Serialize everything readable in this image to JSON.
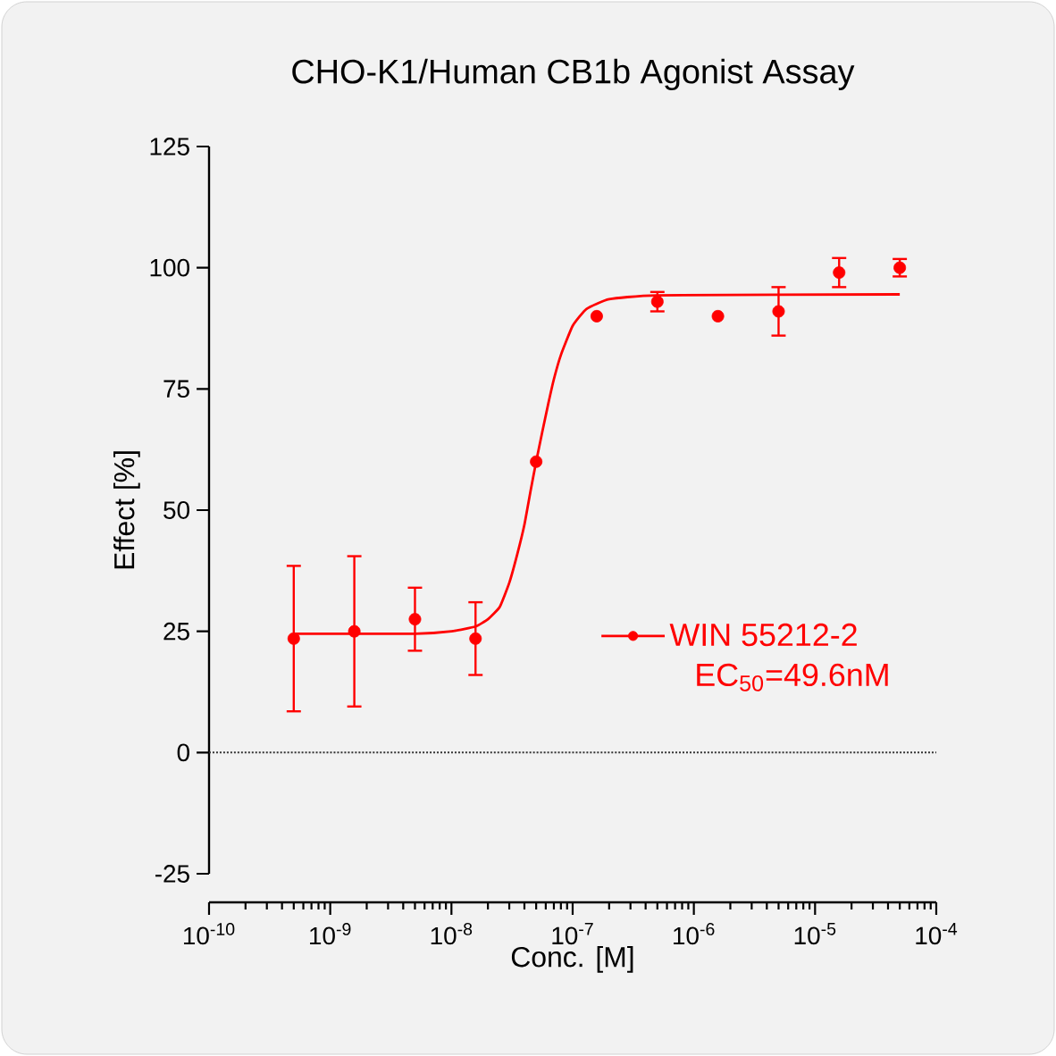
{
  "chart_data": {
    "type": "scatter",
    "title": "CHO-K1/Human CB1b Agonist Assay",
    "xlabel": "Conc. [M]",
    "ylabel": "Effect [%]",
    "log": "x",
    "xlim": [
      1e-10,
      0.0001
    ],
    "ylim": [
      -25,
      125
    ],
    "xticks": [
      {
        "value": 1e-10,
        "label": "10$^{-10}$"
      },
      {
        "value": 1e-09,
        "label": "10$^{-9}$"
      },
      {
        "value": 1e-08,
        "label": "10$^{-8}$"
      },
      {
        "value": 1e-07,
        "label": "10$^{-7}$"
      },
      {
        "value": 1e-06,
        "label": "10$^{-6}$"
      },
      {
        "value": 1e-05,
        "label": "10$^{-5}$"
      },
      {
        "value": 0.0001,
        "label": "10$^{-4}$"
      }
    ],
    "yticks": [
      -25,
      0,
      25,
      50,
      75,
      100,
      125
    ],
    "marker": "circle",
    "legend": "right",
    "series": [
      {
        "name": "WIN 55212-2",
        "color": "#ff0000",
        "x": [
          5e-10,
          1.58e-09,
          5e-09,
          1.58e-08,
          5e-08,
          1.58e-07,
          5e-07,
          1.58e-06,
          5e-06,
          1.58e-05,
          5e-05
        ],
        "values": [
          23.5,
          25,
          27.5,
          23.5,
          60,
          90,
          93,
          90,
          91,
          99,
          100
        ],
        "errors": [
          15,
          15.5,
          6.5,
          7.5,
          null,
          null,
          2,
          null,
          5,
          3,
          1.8
        ]
      },
      {
        "type": "line",
        "marker": "none",
        "color": "#ff0000",
        "x": [
          5e-10,
          5e-09,
          1e-08,
          1.58e-08,
          2e-08,
          2.5e-08,
          3e-08,
          3.5e-08,
          4e-08,
          4.5e-08,
          5e-08,
          5.6e-08,
          6.3e-08,
          7e-08,
          8e-08,
          1e-07,
          1.3e-07,
          2e-07,
          5e-07,
          5e-05
        ],
        "values": [
          24.5,
          24.5,
          25,
          26,
          27.5,
          30,
          35,
          41,
          47,
          54,
          60,
          66,
          72,
          77,
          82,
          88,
          91.5,
          93.5,
          94.3,
          94.5
        ]
      }
    ],
    "ref_lines": [
      {
        "axis": "y",
        "value": 0,
        "color": "#333333",
        "line_style": "dotted"
      }
    ],
    "annotations": [
      "EC$_{50}$=49.6nM"
    ]
  }
}
